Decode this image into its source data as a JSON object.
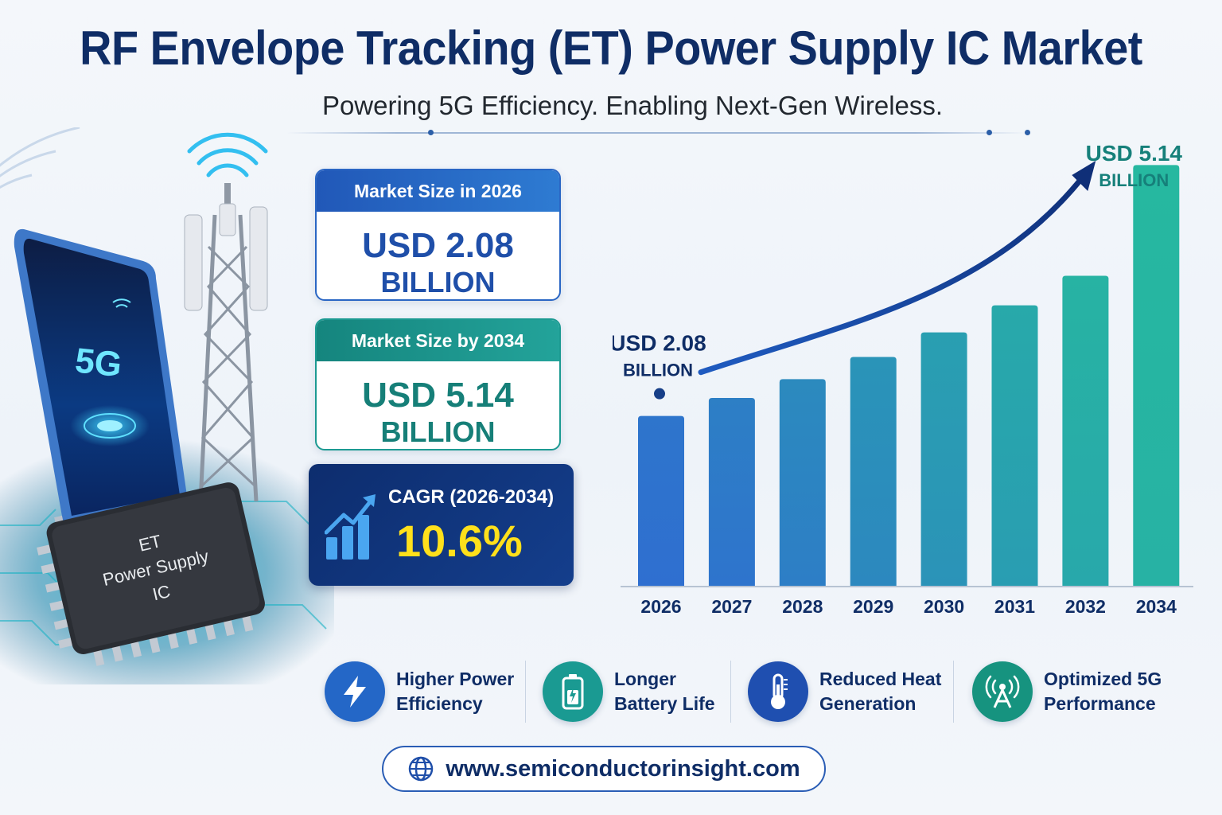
{
  "header": {
    "title": "RF Envelope Tracking (ET) Power Supply IC Market",
    "subtitle": "Powering 5G Efficiency. Enabling Next-Gen Wireless."
  },
  "illustration": {
    "phone_text": "5G",
    "chip_lines": [
      "ET",
      "Power Supply",
      "IC"
    ]
  },
  "cards": {
    "size_2026": {
      "label": "Market Size in 2026",
      "value_line1": "USD 2.08",
      "value_line2": "BILLION"
    },
    "size_2034": {
      "label": "Market Size by 2034",
      "value_line1": "USD 5.14",
      "value_line2": "BILLION"
    },
    "cagr": {
      "label": "CAGR (2026-2034)",
      "value": "10.6%"
    }
  },
  "chart_data": {
    "type": "bar",
    "categories": [
      "2026",
      "2027",
      "2028",
      "2029",
      "2030",
      "2031",
      "2032",
      "2034"
    ],
    "values": [
      2.08,
      2.3,
      2.53,
      2.8,
      3.1,
      3.43,
      3.79,
      5.14
    ],
    "annotations": [
      {
        "category": "2026",
        "line1": "USD 2.08",
        "line2": "BILLION"
      },
      {
        "category": "2034",
        "line1": "USD 5.14",
        "line2": "BILLION"
      }
    ],
    "ylim": [
      0,
      5.6
    ],
    "trend_arrow": true,
    "colors": {
      "start": "#2f6fd0",
      "end": "#26b8a0",
      "label": "#0f2d66",
      "annotation_end": "#16807a"
    }
  },
  "benefits": [
    {
      "icon": "lightning-icon",
      "line1": "Higher Power",
      "line2": "Efficiency",
      "color": "#2467c7"
    },
    {
      "icon": "battery-icon",
      "line1": "Longer",
      "line2": "Battery Life",
      "color": "#1a9a92"
    },
    {
      "icon": "thermometer-icon",
      "line1": "Reduced Heat",
      "line2": "Generation",
      "color": "#1f4fb0"
    },
    {
      "icon": "antenna-icon",
      "line1": "Optimized 5G",
      "line2": "Performance",
      "color": "#16937f"
    }
  ],
  "footer": {
    "url": "www.semiconductorinsight.com",
    "icon": "globe-icon"
  }
}
